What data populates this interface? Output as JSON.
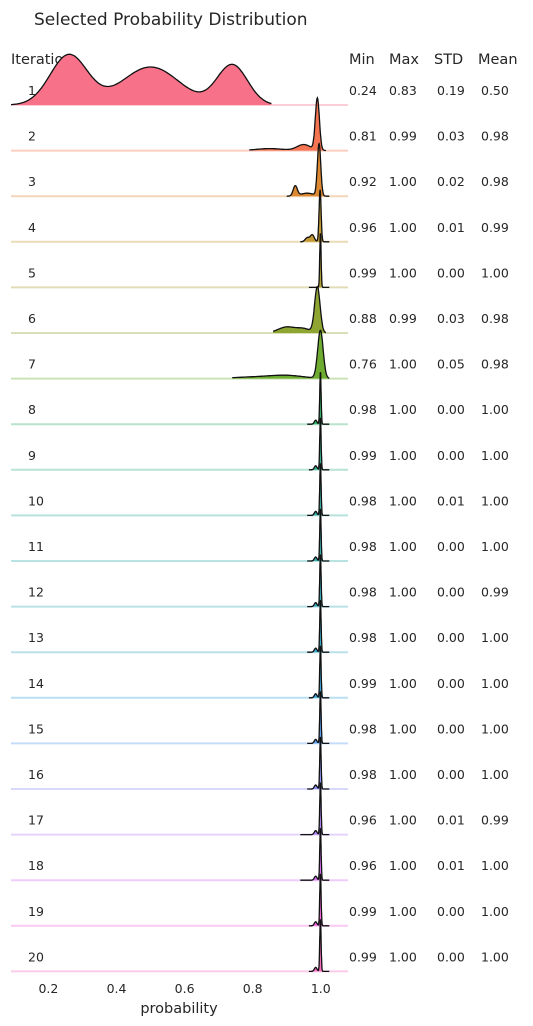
{
  "chart_data": {
    "type": "ridgeline",
    "title": "Selected Probability Distribution",
    "xlabel": "probability",
    "row_header": "Iteration",
    "stat_headers": [
      "Min",
      "Max",
      "STD",
      "Mean"
    ],
    "xlim": [
      0.09,
      1.08
    ],
    "xticks": [
      0.2,
      0.4,
      0.6,
      0.8,
      1.0
    ],
    "xtick_labels": [
      "0.2",
      "0.4",
      "0.6",
      "0.8",
      "1.0"
    ],
    "grid": false,
    "rows": [
      {
        "iteration": "1",
        "min": "0.24",
        "max": "0.83",
        "std": "0.19",
        "mean": "0.50",
        "color": "#f77189"
      },
      {
        "iteration": "2",
        "min": "0.81",
        "max": "0.99",
        "std": "0.03",
        "mean": "0.98",
        "color": "#f57451"
      },
      {
        "iteration": "3",
        "min": "0.92",
        "max": "1.00",
        "std": "0.02",
        "mean": "0.98",
        "color": "#dc8932"
      },
      {
        "iteration": "4",
        "min": "0.96",
        "max": "1.00",
        "std": "0.01",
        "mean": "0.99",
        "color": "#c29932"
      },
      {
        "iteration": "5",
        "min": "0.99",
        "max": "1.00",
        "std": "0.00",
        "mean": "1.00",
        "color": "#ae9d31"
      },
      {
        "iteration": "6",
        "min": "0.88",
        "max": "0.99",
        "std": "0.03",
        "mean": "0.98",
        "color": "#8fa531"
      },
      {
        "iteration": "7",
        "min": "0.76",
        "max": "1.00",
        "std": "0.05",
        "mean": "0.98",
        "color": "#6eac31"
      },
      {
        "iteration": "8",
        "min": "0.98",
        "max": "1.00",
        "std": "0.00",
        "mean": "1.00",
        "color": "#32b166"
      },
      {
        "iteration": "9",
        "min": "0.99",
        "max": "1.00",
        "std": "0.00",
        "mean": "1.00",
        "color": "#34ae8d"
      },
      {
        "iteration": "10",
        "min": "0.98",
        "max": "1.00",
        "std": "0.01",
        "mean": "1.00",
        "color": "#35ac9e"
      },
      {
        "iteration": "11",
        "min": "0.98",
        "max": "1.00",
        "std": "0.00",
        "mean": "1.00",
        "color": "#36abac"
      },
      {
        "iteration": "12",
        "min": "0.98",
        "max": "1.00",
        "std": "0.00",
        "mean": "0.99",
        "color": "#37a9b9"
      },
      {
        "iteration": "13",
        "min": "0.98",
        "max": "1.00",
        "std": "0.00",
        "mean": "1.00",
        "color": "#38a7c6"
      },
      {
        "iteration": "14",
        "min": "0.99",
        "max": "1.00",
        "std": "0.00",
        "mean": "1.00",
        "color": "#3ba3d8"
      },
      {
        "iteration": "15",
        "min": "0.98",
        "max": "1.00",
        "std": "0.00",
        "mean": "1.00",
        "color": "#5a9ef4"
      },
      {
        "iteration": "16",
        "min": "0.98",
        "max": "1.00",
        "std": "0.00",
        "mean": "1.00",
        "color": "#8d92f4"
      },
      {
        "iteration": "17",
        "min": "0.96",
        "max": "1.00",
        "std": "0.01",
        "mean": "0.99",
        "color": "#b184f4"
      },
      {
        "iteration": "18",
        "min": "0.96",
        "max": "1.00",
        "std": "0.01",
        "mean": "1.00",
        "color": "#d56ef3"
      },
      {
        "iteration": "19",
        "min": "0.99",
        "max": "1.00",
        "std": "0.00",
        "mean": "1.00",
        "color": "#f361dd"
      },
      {
        "iteration": "20",
        "min": "0.99",
        "max": "1.00",
        "std": "0.00",
        "mean": "1.00",
        "color": "#f46bbf"
      }
    ]
  }
}
